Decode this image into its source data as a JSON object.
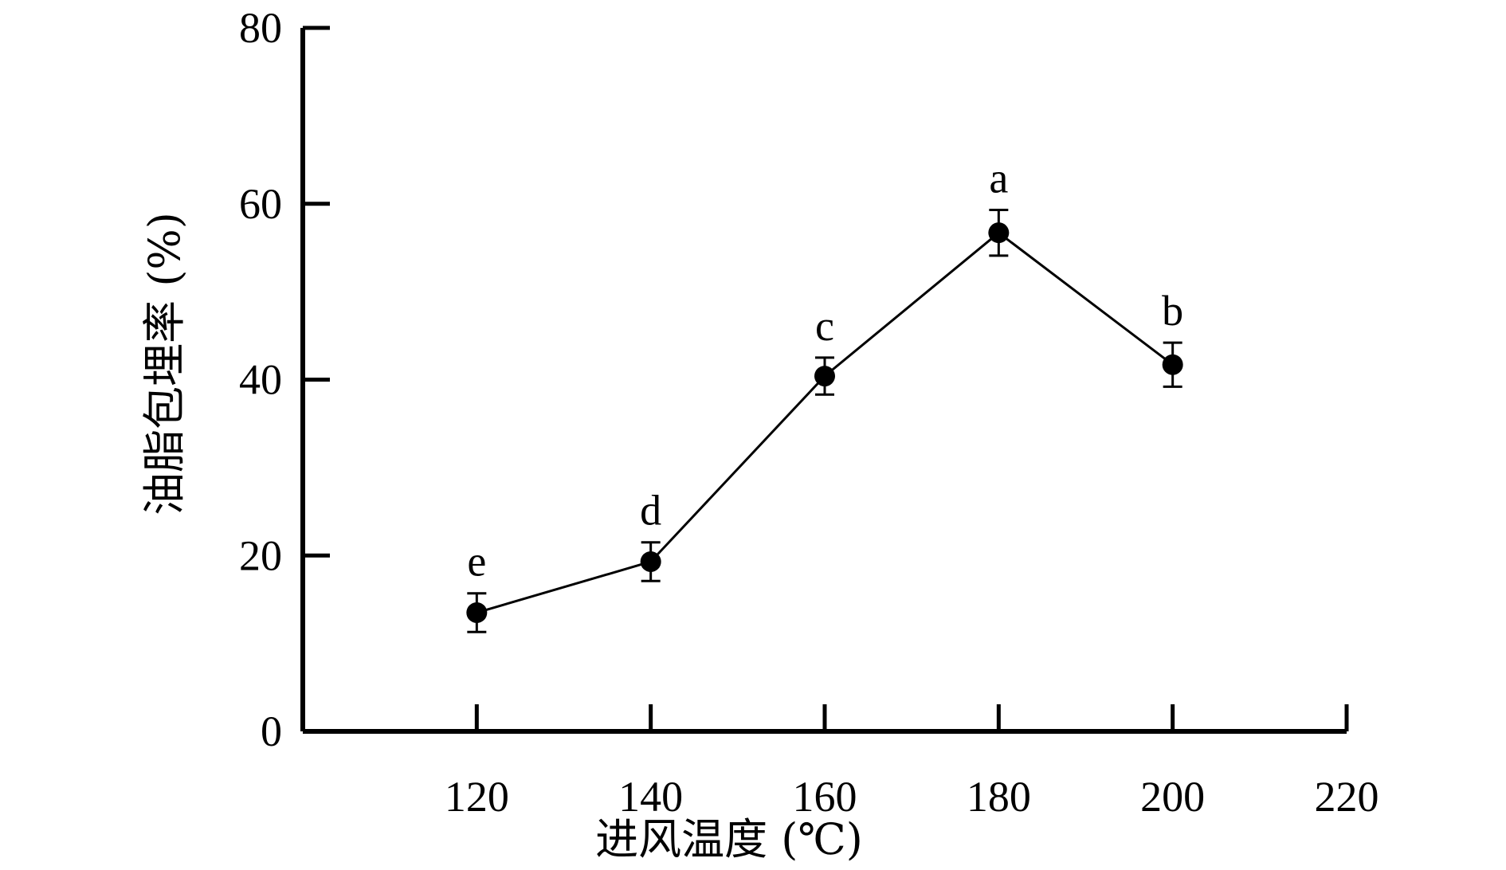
{
  "chart_data": {
    "type": "line",
    "xlabel": "进风温度 (℃)",
    "ylabel": "油脂包埋率 (%)",
    "xlim": [
      100,
      220
    ],
    "ylim": [
      0,
      80
    ],
    "x_ticks": [
      120,
      140,
      160,
      180,
      200,
      220
    ],
    "y_ticks": [
      0,
      20,
      40,
      60,
      80
    ],
    "grid": false,
    "series": [
      {
        "color": "#000000",
        "marker": "filled-circle",
        "x": [
          120,
          140,
          160,
          180,
          200
        ],
        "y": [
          13.5,
          19.3,
          40.4,
          56.7,
          41.7
        ],
        "error": [
          2.2,
          2.2,
          2.1,
          2.6,
          2.5
        ],
        "labels": [
          "e",
          "d",
          "c",
          "a",
          "b"
        ]
      }
    ]
  }
}
